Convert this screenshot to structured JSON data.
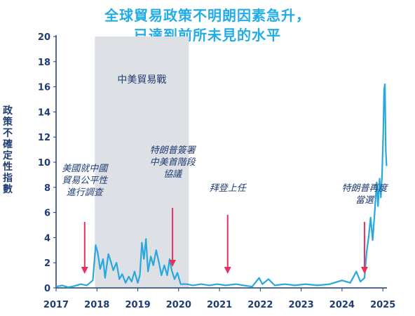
{
  "title_line1": "全球貿易政策不明朗因素急升，",
  "title_line2": "已達到前所未見的水平",
  "chart_data": {
    "type": "line",
    "ylabel": "政策不確定性指數",
    "xlabel": "",
    "ylim": [
      0,
      20
    ],
    "xlim": [
      2017.0,
      2025.1
    ],
    "y_ticks": [
      "0",
      "2",
      "4",
      "6",
      "8",
      "10",
      "12",
      "14",
      "16",
      "18",
      "20"
    ],
    "x_ticks": [
      "2017",
      "2018",
      "2019",
      "2020",
      "2021",
      "2022",
      "2023",
      "2024",
      "2025"
    ],
    "grid": false,
    "line_color": "#2aa8dd",
    "shaded_region": {
      "x0": 2017.95,
      "x1": 2020.25,
      "label": "中美貿易戰",
      "color": "#dde1e6"
    },
    "annotations": [
      {
        "text": "美國就中國\n貿易公平性\n進行調查",
        "arrow_x": 2017.7
      },
      {
        "text": "特朗普簽署\n中美首階段\n協議",
        "arrow_x": 2019.85
      },
      {
        "text": "拜登上任",
        "arrow_x": 2021.2
      },
      {
        "text": "特朗普再度\n當選",
        "arrow_x": 2024.55
      }
    ],
    "series": [
      {
        "values": [
          [
            2017.0,
            0.1
          ],
          [
            2017.15,
            0.2
          ],
          [
            2017.3,
            0.05
          ],
          [
            2017.45,
            0.15
          ],
          [
            2017.6,
            0.3
          ],
          [
            2017.75,
            0.2
          ],
          [
            2017.9,
            0.6
          ],
          [
            2017.97,
            3.4
          ],
          [
            2018.02,
            2.8
          ],
          [
            2018.08,
            1.5
          ],
          [
            2018.15,
            2.3
          ],
          [
            2018.2,
            0.8
          ],
          [
            2018.28,
            2.7
          ],
          [
            2018.33,
            2.2
          ],
          [
            2018.4,
            1.4
          ],
          [
            2018.48,
            2.0
          ],
          [
            2018.55,
            0.7
          ],
          [
            2018.62,
            1.1
          ],
          [
            2018.7,
            0.4
          ],
          [
            2018.78,
            0.9
          ],
          [
            2018.85,
            0.5
          ],
          [
            2018.92,
            1.3
          ],
          [
            2019.0,
            0.4
          ],
          [
            2019.05,
            1.0
          ],
          [
            2019.1,
            3.6
          ],
          [
            2019.15,
            2.3
          ],
          [
            2019.2,
            3.9
          ],
          [
            2019.25,
            1.3
          ],
          [
            2019.32,
            2.5
          ],
          [
            2019.38,
            1.8
          ],
          [
            2019.45,
            3.0
          ],
          [
            2019.52,
            2.0
          ],
          [
            2019.58,
            1.0
          ],
          [
            2019.65,
            1.8
          ],
          [
            2019.72,
            1.0
          ],
          [
            2019.78,
            2.3
          ],
          [
            2019.83,
            1.4
          ],
          [
            2019.9,
            0.7
          ],
          [
            2019.97,
            1.2
          ],
          [
            2020.05,
            0.3
          ],
          [
            2020.2,
            0.3
          ],
          [
            2020.35,
            0.2
          ],
          [
            2020.55,
            0.3
          ],
          [
            2020.75,
            0.2
          ],
          [
            2020.95,
            0.3
          ],
          [
            2021.15,
            0.2
          ],
          [
            2021.4,
            0.3
          ],
          [
            2021.6,
            0.2
          ],
          [
            2021.8,
            0.1
          ],
          [
            2021.97,
            0.8
          ],
          [
            2022.05,
            0.3
          ],
          [
            2022.2,
            0.7
          ],
          [
            2022.35,
            0.2
          ],
          [
            2022.6,
            0.3
          ],
          [
            2022.85,
            0.2
          ],
          [
            2023.1,
            0.3
          ],
          [
            2023.4,
            0.2
          ],
          [
            2023.7,
            0.3
          ],
          [
            2024.0,
            0.6
          ],
          [
            2024.2,
            0.4
          ],
          [
            2024.35,
            1.3
          ],
          [
            2024.45,
            0.5
          ],
          [
            2024.55,
            0.8
          ],
          [
            2024.6,
            2.8
          ],
          [
            2024.65,
            4.0
          ],
          [
            2024.7,
            5.6
          ],
          [
            2024.75,
            3.8
          ],
          [
            2024.8,
            6.0
          ],
          [
            2024.85,
            8.4
          ],
          [
            2024.88,
            6.5
          ],
          [
            2024.92,
            8.7
          ],
          [
            2024.95,
            7.2
          ],
          [
            2024.98,
            9.0
          ],
          [
            2025.01,
            12.5
          ],
          [
            2025.03,
            15.8
          ],
          [
            2025.05,
            16.2
          ],
          [
            2025.07,
            11.0
          ],
          [
            2025.09,
            9.7
          ]
        ]
      }
    ]
  }
}
